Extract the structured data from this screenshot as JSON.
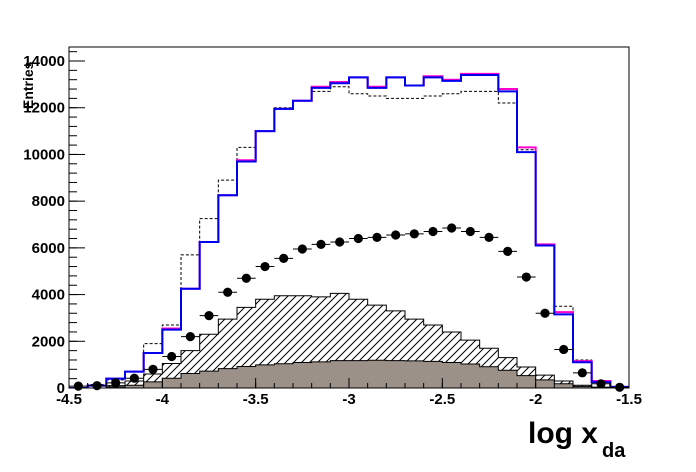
{
  "chart_data": {
    "type": "histogram",
    "xlabel": "log x",
    "xlabel_subscript": "da",
    "ylabel": "Entries",
    "xlim": [
      -4.5,
      -1.5
    ],
    "ylim": [
      0,
      14600
    ],
    "x_ticks": [
      -4.5,
      -4,
      -3.5,
      -3,
      -2.5,
      -2,
      -1.5
    ],
    "x_tick_labels": [
      "-4.5",
      "-4",
      "-3.5",
      "-3",
      "-2.5",
      "-2",
      "-1.5"
    ],
    "y_ticks": [
      0,
      2000,
      4000,
      6000,
      8000,
      10000,
      12000,
      14000
    ],
    "y_tick_labels": [
      "0",
      "2000",
      "4000",
      "6000",
      "8000",
      "10000",
      "12000",
      "14000"
    ],
    "bin_edges": [
      -4.5,
      -4.4,
      -4.3,
      -4.2,
      -4.1,
      -4.0,
      -3.9,
      -3.8,
      -3.7,
      -3.6,
      -3.5,
      -3.4,
      -3.3,
      -3.2,
      -3.1,
      -3.0,
      -2.9,
      -2.8,
      -2.7,
      -2.6,
      -2.5,
      -2.4,
      -2.3,
      -2.2,
      -2.1,
      -2.0,
      -1.9,
      -1.8,
      -1.7,
      -1.6,
      -1.5
    ],
    "series": [
      {
        "style": "dashed-black-line",
        "values": [
          0,
          150,
          350,
          700,
          1900,
          2700,
          5700,
          7250,
          8900,
          10300,
          11000,
          12000,
          12300,
          12700,
          12900,
          12600,
          12500,
          12400,
          12400,
          12500,
          12600,
          12700,
          12700,
          12200,
          10200,
          6100,
          3500,
          1200,
          300,
          50
        ]
      },
      {
        "style": "magenta-line",
        "values": [
          0,
          100,
          400,
          700,
          1500,
          2550,
          4250,
          6250,
          8250,
          9750,
          11000,
          11950,
          12300,
          12900,
          13100,
          13300,
          12900,
          13300,
          12950,
          13350,
          13200,
          13450,
          13450,
          12800,
          10300,
          6150,
          3250,
          1150,
          300,
          50
        ]
      },
      {
        "style": "blue-line",
        "values": [
          0,
          100,
          400,
          700,
          1500,
          2500,
          4250,
          6250,
          8250,
          9700,
          11000,
          11950,
          12300,
          12850,
          13050,
          13300,
          12850,
          13300,
          12950,
          13300,
          13150,
          13400,
          13400,
          12700,
          10100,
          6100,
          3150,
          1100,
          250,
          50
        ]
      },
      {
        "style": "black-markers-with-errors",
        "values": [
          80,
          100,
          220,
          420,
          800,
          1350,
          2200,
          3100,
          4100,
          4700,
          5200,
          5550,
          5950,
          6150,
          6250,
          6400,
          6450,
          6550,
          6600,
          6700,
          6850,
          6700,
          6450,
          5850,
          4750,
          3200,
          1650,
          650,
          180,
          30
        ]
      },
      {
        "style": "hatched-fill",
        "values": [
          0,
          0,
          100,
          300,
          600,
          1050,
          1600,
          2300,
          2950,
          3450,
          3800,
          3950,
          3950,
          3900,
          4050,
          3800,
          3550,
          3300,
          2950,
          2700,
          2400,
          2050,
          1700,
          1300,
          900,
          550,
          300,
          120,
          40,
          10
        ]
      },
      {
        "style": "gray-fill",
        "values": [
          0,
          0,
          50,
          120,
          260,
          420,
          620,
          720,
          830,
          920,
          990,
          1040,
          1090,
          1120,
          1170,
          1170,
          1190,
          1170,
          1160,
          1140,
          1090,
          1030,
          910,
          760,
          530,
          350,
          180,
          70,
          20,
          0
        ]
      }
    ]
  }
}
